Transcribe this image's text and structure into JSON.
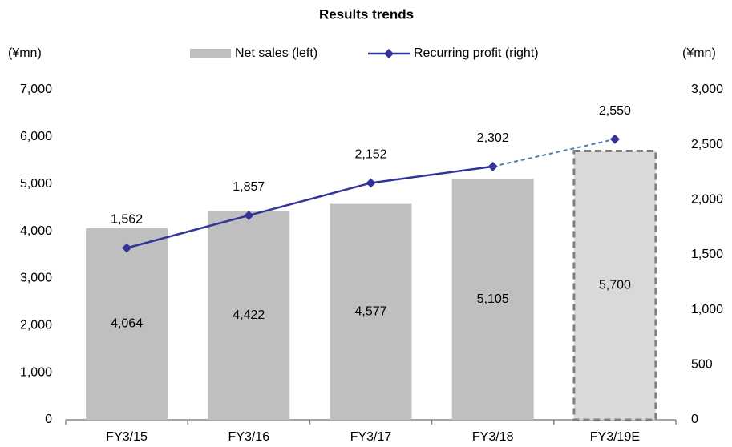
{
  "chart_data": {
    "type": "bar-line",
    "title": "Results trends",
    "y_unit": "(¥mn)",
    "y2_unit": "(¥mn)",
    "categories": [
      "FY3/15",
      "FY3/16",
      "FY3/17",
      "FY3/18",
      "FY3/19E"
    ],
    "series": [
      {
        "name": "Net sales (left)",
        "type": "bar",
        "axis": "y",
        "color": "#bfbfbf",
        "colors": [
          "#bfbfbf",
          "#bfbfbf",
          "#bfbfbf",
          "#bfbfbf",
          "#d9d9d9"
        ],
        "dashed": [
          false,
          false,
          false,
          false,
          true
        ],
        "values": [
          4064,
          4422,
          4577,
          5105,
          5700
        ],
        "value_labels": [
          "4,064",
          "4,422",
          "4,577",
          "5,105",
          "5,700"
        ]
      },
      {
        "name": "Recurring profit (right)",
        "type": "line",
        "axis": "y2",
        "color": "#333399",
        "dashed_color": "#4a7ebb",
        "dashed": [
          false,
          false,
          false,
          false,
          true
        ],
        "values": [
          1562,
          1857,
          2152,
          2302,
          2550
        ],
        "value_labels": [
          "1,562",
          "1,857",
          "2,152",
          "2,302",
          "2,550"
        ]
      }
    ],
    "ylim": [
      0,
      7000
    ],
    "yticks": [
      0,
      {
        "value": 1000,
        "label": "1,000"
      },
      {
        "value": 2000,
        "label": "2,000"
      },
      {
        "value": 3000,
        "label": "3,000"
      },
      {
        "value": 4000,
        "label": "4,000"
      },
      {
        "value": 5000,
        "label": "5,000"
      },
      {
        "value": 6000,
        "label": "6,000"
      },
      {
        "value": 7000,
        "label": "7,000"
      }
    ],
    "y2lim": [
      0,
      3000
    ],
    "y2ticks": [
      0,
      500,
      {
        "value": 1000,
        "label": "1,000"
      },
      {
        "value": 1500,
        "label": "1,500"
      },
      {
        "value": 2000,
        "label": "2,000"
      },
      {
        "value": 2500,
        "label": "2,500"
      },
      {
        "value": 3000,
        "label": "3,000"
      }
    ],
    "legend": "top",
    "grid": false
  }
}
